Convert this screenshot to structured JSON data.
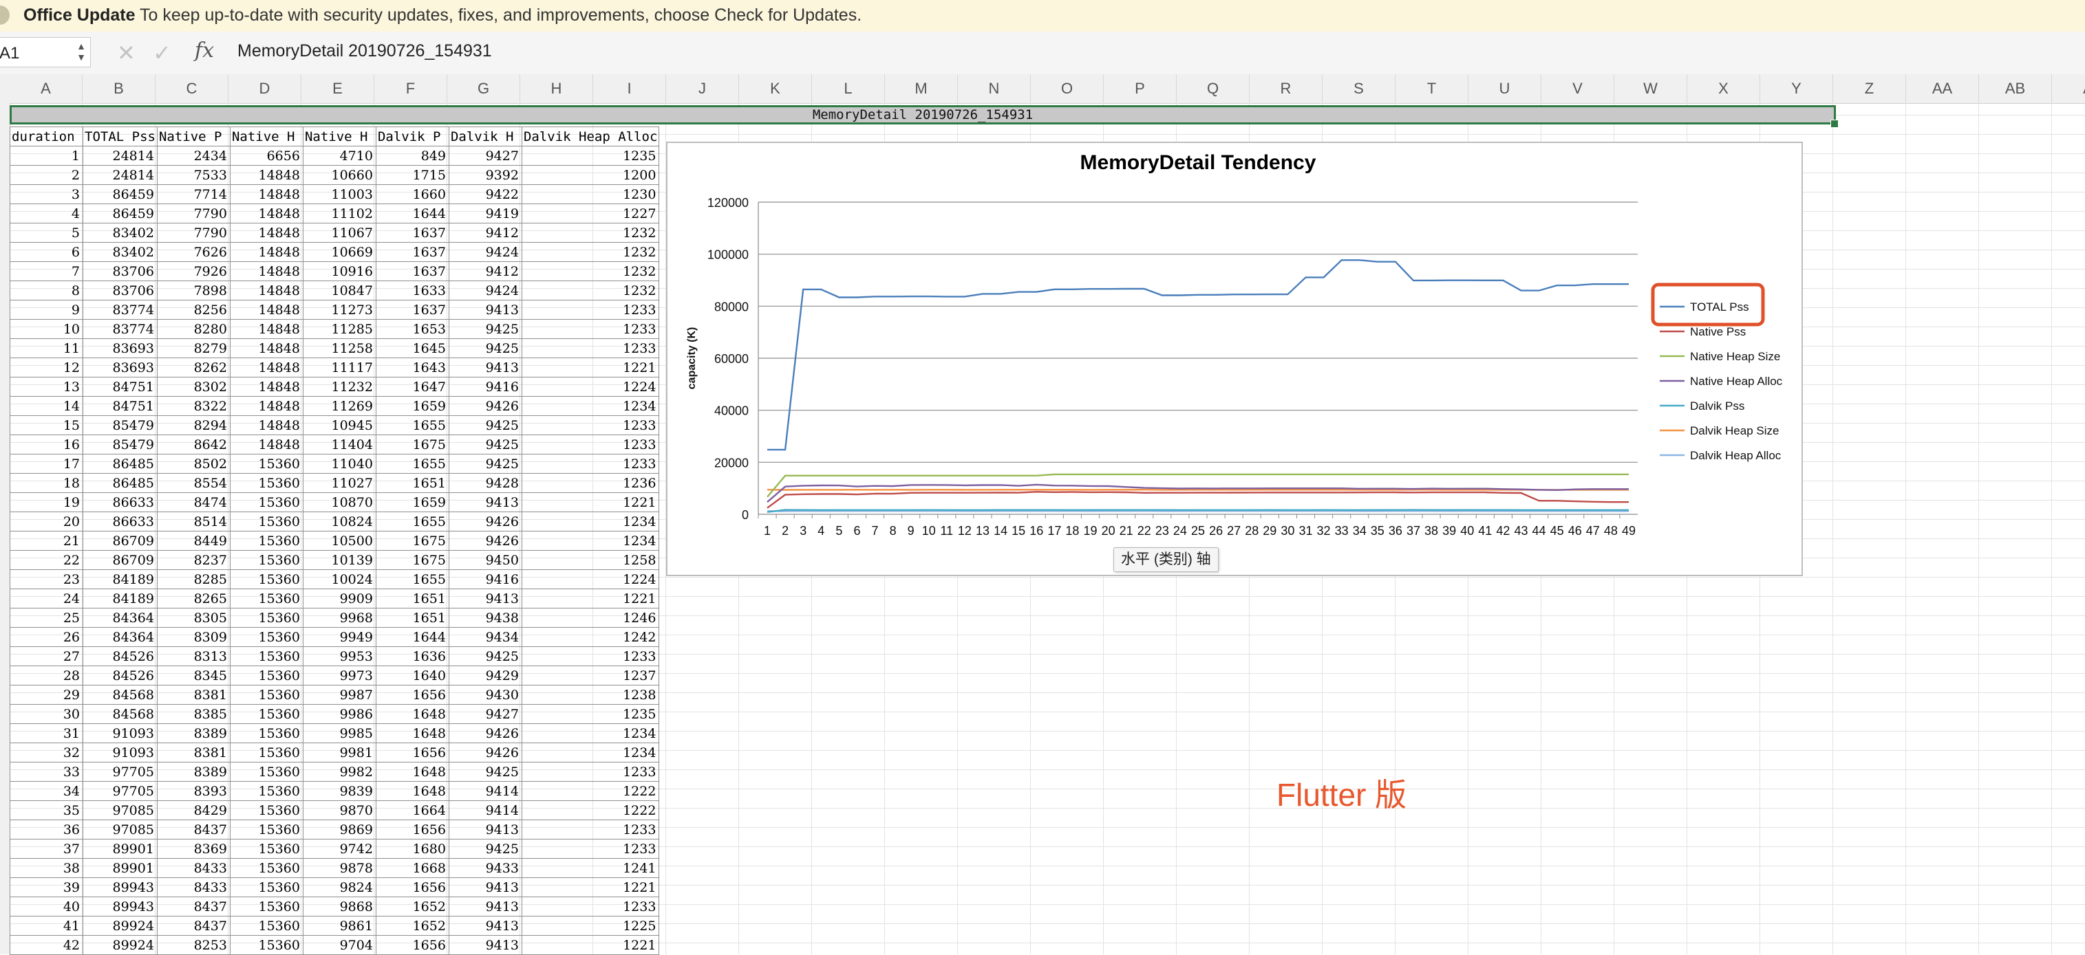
{
  "update_bar": {
    "title": "Office Update",
    "message": "To keep up-to-date with security updates, fixes, and improvements, choose Check for Updates."
  },
  "formula_bar": {
    "name_box": "A1",
    "content": "MemoryDetail 20190726_154931",
    "cancel_icon": "x-icon",
    "confirm_icon": "check-icon",
    "fx_label": "fx"
  },
  "columns": [
    "A",
    "B",
    "C",
    "D",
    "E",
    "F",
    "G",
    "H",
    "I",
    "J",
    "K",
    "L",
    "M",
    "N",
    "O",
    "P",
    "Q",
    "R",
    "S",
    "T",
    "U",
    "V",
    "W",
    "X",
    "Y",
    "Z",
    "AA",
    "AB",
    "A"
  ],
  "sheet_title": "MemoryDetail 20190726_154931",
  "table": {
    "headers": [
      "duration",
      "TOTAL Pss",
      "Native P",
      "Native H",
      "Native H",
      "Dalvik P",
      "Dalvik H",
      "Dalvik Heap Alloc"
    ],
    "rows": [
      [
        "1",
        "24814",
        "2434",
        "6656",
        "4710",
        "849",
        "9427",
        "1235"
      ],
      [
        "2",
        "24814",
        "7533",
        "14848",
        "10660",
        "1715",
        "9392",
        "1200"
      ],
      [
        "3",
        "86459",
        "7714",
        "14848",
        "11003",
        "1660",
        "9422",
        "1230"
      ],
      [
        "4",
        "86459",
        "7790",
        "14848",
        "11102",
        "1644",
        "9419",
        "1227"
      ],
      [
        "5",
        "83402",
        "7790",
        "14848",
        "11067",
        "1637",
        "9412",
        "1232"
      ],
      [
        "6",
        "83402",
        "7626",
        "14848",
        "10669",
        "1637",
        "9424",
        "1232"
      ],
      [
        "7",
        "83706",
        "7926",
        "14848",
        "10916",
        "1637",
        "9412",
        "1232"
      ],
      [
        "8",
        "83706",
        "7898",
        "14848",
        "10847",
        "1633",
        "9424",
        "1232"
      ],
      [
        "9",
        "83774",
        "8256",
        "14848",
        "11273",
        "1637",
        "9413",
        "1233"
      ],
      [
        "10",
        "83774",
        "8280",
        "14848",
        "11285",
        "1653",
        "9425",
        "1233"
      ],
      [
        "11",
        "83693",
        "8279",
        "14848",
        "11258",
        "1645",
        "9425",
        "1233"
      ],
      [
        "12",
        "83693",
        "8262",
        "14848",
        "11117",
        "1643",
        "9413",
        "1221"
      ],
      [
        "13",
        "84751",
        "8302",
        "14848",
        "11232",
        "1647",
        "9416",
        "1224"
      ],
      [
        "14",
        "84751",
        "8322",
        "14848",
        "11269",
        "1659",
        "9426",
        "1234"
      ],
      [
        "15",
        "85479",
        "8294",
        "14848",
        "10945",
        "1655",
        "9425",
        "1233"
      ],
      [
        "16",
        "85479",
        "8642",
        "14848",
        "11404",
        "1675",
        "9425",
        "1233"
      ],
      [
        "17",
        "86485",
        "8502",
        "15360",
        "11040",
        "1655",
        "9425",
        "1233"
      ],
      [
        "18",
        "86485",
        "8554",
        "15360",
        "11027",
        "1651",
        "9428",
        "1236"
      ],
      [
        "19",
        "86633",
        "8474",
        "15360",
        "10870",
        "1659",
        "9413",
        "1221"
      ],
      [
        "20",
        "86633",
        "8514",
        "15360",
        "10824",
        "1655",
        "9426",
        "1234"
      ],
      [
        "21",
        "86709",
        "8449",
        "15360",
        "10500",
        "1675",
        "9426",
        "1234"
      ],
      [
        "22",
        "86709",
        "8237",
        "15360",
        "10139",
        "1675",
        "9450",
        "1258"
      ],
      [
        "23",
        "84189",
        "8285",
        "15360",
        "10024",
        "1655",
        "9416",
        "1224"
      ],
      [
        "24",
        "84189",
        "8265",
        "15360",
        "9909",
        "1651",
        "9413",
        "1221"
      ],
      [
        "25",
        "84364",
        "8305",
        "15360",
        "9968",
        "1651",
        "9438",
        "1246"
      ],
      [
        "26",
        "84364",
        "8309",
        "15360",
        "9949",
        "1644",
        "9434",
        "1242"
      ],
      [
        "27",
        "84526",
        "8313",
        "15360",
        "9953",
        "1636",
        "9425",
        "1233"
      ],
      [
        "28",
        "84526",
        "8345",
        "15360",
        "9973",
        "1640",
        "9429",
        "1237"
      ],
      [
        "29",
        "84568",
        "8381",
        "15360",
        "9987",
        "1656",
        "9430",
        "1238"
      ],
      [
        "30",
        "84568",
        "8385",
        "15360",
        "9986",
        "1648",
        "9427",
        "1235"
      ],
      [
        "31",
        "91093",
        "8389",
        "15360",
        "9985",
        "1648",
        "9426",
        "1234"
      ],
      [
        "32",
        "91093",
        "8381",
        "15360",
        "9981",
        "1656",
        "9426",
        "1234"
      ],
      [
        "33",
        "97705",
        "8389",
        "15360",
        "9982",
        "1648",
        "9425",
        "1233"
      ],
      [
        "34",
        "97705",
        "8393",
        "15360",
        "9839",
        "1648",
        "9414",
        "1222"
      ],
      [
        "35",
        "97085",
        "8429",
        "15360",
        "9870",
        "1664",
        "9414",
        "1222"
      ],
      [
        "36",
        "97085",
        "8437",
        "15360",
        "9869",
        "1656",
        "9413",
        "1233"
      ],
      [
        "37",
        "89901",
        "8369",
        "15360",
        "9742",
        "1680",
        "9425",
        "1233"
      ],
      [
        "38",
        "89901",
        "8433",
        "15360",
        "9878",
        "1668",
        "9433",
        "1241"
      ],
      [
        "39",
        "89943",
        "8433",
        "15360",
        "9824",
        "1656",
        "9413",
        "1221"
      ],
      [
        "40",
        "89943",
        "8437",
        "15360",
        "9868",
        "1652",
        "9413",
        "1233"
      ],
      [
        "41",
        "89924",
        "8437",
        "15360",
        "9861",
        "1652",
        "9413",
        "1225"
      ],
      [
        "42",
        "89924",
        "8253",
        "15360",
        "9704",
        "1656",
        "9413",
        "1221"
      ]
    ]
  },
  "chart_data": {
    "type": "line",
    "title": "MemoryDetail Tendency",
    "xlabel": "",
    "ylabel": "capacity (K)",
    "ylim": [
      0,
      120000
    ],
    "yticks": [
      "0",
      "20000",
      "40000",
      "60000",
      "80000",
      "100000",
      "120000"
    ],
    "grid": true,
    "legend_position": "right",
    "highlighted_legend_entry": "TOTAL Pss",
    "categories": [
      "1",
      "2",
      "3",
      "4",
      "5",
      "6",
      "7",
      "8",
      "9",
      "10",
      "11",
      "12",
      "13",
      "14",
      "15",
      "16",
      "17",
      "18",
      "19",
      "20",
      "21",
      "22",
      "23",
      "24",
      "25",
      "26",
      "27",
      "28",
      "29",
      "30",
      "31",
      "32",
      "33",
      "34",
      "35",
      "36",
      "37",
      "38",
      "39",
      "40",
      "41",
      "42",
      "43",
      "44",
      "45",
      "46",
      "47",
      "48",
      "49"
    ],
    "series": [
      {
        "name": "TOTAL Pss",
        "color": "#4a7ebb",
        "values": [
          24814,
          24814,
          86459,
          86459,
          83402,
          83402,
          83706,
          83706,
          83774,
          83774,
          83693,
          83693,
          84751,
          84751,
          85479,
          85479,
          86485,
          86485,
          86633,
          86633,
          86709,
          86709,
          84189,
          84189,
          84364,
          84364,
          84526,
          84526,
          84568,
          84568,
          91093,
          91093,
          97705,
          97705,
          97085,
          97085,
          89901,
          89901,
          89943,
          89943,
          89924,
          89924,
          86000,
          86000,
          88000,
          88000,
          88500,
          88500,
          88500
        ]
      },
      {
        "name": "Native Pss",
        "color": "#be4b48",
        "values": [
          2434,
          7533,
          7714,
          7790,
          7790,
          7626,
          7926,
          7898,
          8256,
          8280,
          8279,
          8262,
          8302,
          8322,
          8294,
          8642,
          8502,
          8554,
          8474,
          8514,
          8449,
          8237,
          8285,
          8265,
          8305,
          8309,
          8313,
          8345,
          8381,
          8385,
          8389,
          8381,
          8389,
          8393,
          8429,
          8437,
          8369,
          8433,
          8433,
          8437,
          8437,
          8253,
          8200,
          5200,
          5200,
          5000,
          4800,
          4700,
          4700
        ]
      },
      {
        "name": "Native Heap Size",
        "color": "#98b954",
        "values": [
          6656,
          14848,
          14848,
          14848,
          14848,
          14848,
          14848,
          14848,
          14848,
          14848,
          14848,
          14848,
          14848,
          14848,
          14848,
          14848,
          15360,
          15360,
          15360,
          15360,
          15360,
          15360,
          15360,
          15360,
          15360,
          15360,
          15360,
          15360,
          15360,
          15360,
          15360,
          15360,
          15360,
          15360,
          15360,
          15360,
          15360,
          15360,
          15360,
          15360,
          15360,
          15360,
          15360,
          15360,
          15360,
          15360,
          15360,
          15360,
          15360
        ]
      },
      {
        "name": "Native Heap Alloc",
        "color": "#7d60a0",
        "values": [
          4710,
          10660,
          11003,
          11102,
          11067,
          10669,
          10916,
          10847,
          11273,
          11285,
          11258,
          11117,
          11232,
          11269,
          10945,
          11404,
          11040,
          11027,
          10870,
          10824,
          10500,
          10139,
          10024,
          9909,
          9968,
          9949,
          9953,
          9973,
          9987,
          9986,
          9985,
          9981,
          9982,
          9839,
          9870,
          9869,
          9742,
          9878,
          9824,
          9868,
          9861,
          9704,
          9600,
          9400,
          9300,
          9600,
          9700,
          9700,
          9700
        ]
      },
      {
        "name": "Dalvik Pss",
        "color": "#46aac5",
        "values": [
          849,
          1715,
          1660,
          1644,
          1637,
          1637,
          1637,
          1633,
          1637,
          1653,
          1645,
          1643,
          1647,
          1659,
          1655,
          1675,
          1655,
          1651,
          1659,
          1655,
          1675,
          1675,
          1655,
          1651,
          1651,
          1644,
          1636,
          1640,
          1656,
          1648,
          1648,
          1656,
          1648,
          1648,
          1664,
          1656,
          1680,
          1668,
          1656,
          1652,
          1652,
          1656,
          1650,
          1650,
          1650,
          1650,
          1650,
          1650,
          1650
        ]
      },
      {
        "name": "Dalvik Heap Size",
        "color": "#f69240",
        "values": [
          9427,
          9392,
          9422,
          9419,
          9412,
          9424,
          9412,
          9424,
          9413,
          9425,
          9425,
          9413,
          9416,
          9426,
          9425,
          9425,
          9425,
          9428,
          9413,
          9426,
          9426,
          9450,
          9416,
          9413,
          9438,
          9434,
          9425,
          9429,
          9430,
          9427,
          9426,
          9426,
          9425,
          9414,
          9414,
          9413,
          9425,
          9433,
          9413,
          9413,
          9413,
          9413,
          9413,
          9413,
          9413,
          9413,
          9413,
          9413,
          9413
        ]
      },
      {
        "name": "Dalvik Heap Alloc",
        "color": "#8eb4e3",
        "values": [
          1235,
          1200,
          1230,
          1227,
          1232,
          1232,
          1232,
          1232,
          1233,
          1233,
          1233,
          1221,
          1224,
          1234,
          1233,
          1233,
          1233,
          1236,
          1221,
          1234,
          1234,
          1258,
          1224,
          1221,
          1246,
          1242,
          1233,
          1237,
          1238,
          1235,
          1234,
          1234,
          1233,
          1222,
          1222,
          1233,
          1233,
          1241,
          1221,
          1233,
          1225,
          1221,
          1221,
          1221,
          1221,
          1221,
          1221,
          1221,
          1221
        ]
      }
    ]
  },
  "tooltip": "水平 (类别) 轴",
  "annotation": "Flutter 版"
}
